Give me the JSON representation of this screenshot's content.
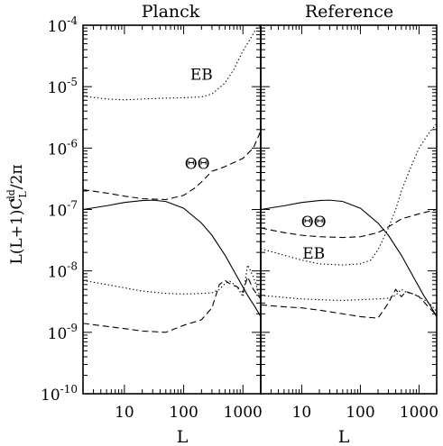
{
  "chart_data": [
    {
      "type": "line",
      "title": "Planck",
      "xlabel": "L",
      "ylabel": "L(L+1)C",
      "ylabel_sub": "L",
      "ylabel_sup": "dd",
      "ylabel_tail": "/2π",
      "xscale": "log",
      "yscale": "log",
      "xlim": [
        2,
        2000
      ],
      "ylim": [
        1e-10,
        0.0001
      ],
      "x_ticks": [
        10,
        100,
        1000
      ],
      "x_tick_labels": [
        "10",
        "100",
        "1000"
      ],
      "y_ticks": [
        1e-10,
        1e-09,
        1e-08,
        1e-07,
        1e-06,
        1e-05,
        0.0001
      ],
      "y_tick_labels": [
        {
          "base": "10",
          "exp": "-10"
        },
        {
          "base": "10",
          "exp": "-9"
        },
        {
          "base": "10",
          "exp": "-8"
        },
        {
          "base": "10",
          "exp": "-7"
        },
        {
          "base": "10",
          "exp": "-6"
        },
        {
          "base": "10",
          "exp": "-5"
        },
        {
          "base": "10",
          "exp": "-4"
        }
      ],
      "annotations": [
        {
          "text": "EB",
          "x": 200,
          "y": 1.3e-05
        },
        {
          "text": "ΘΘ",
          "x": 170,
          "y": 4.6e-07
        }
      ],
      "series": [
        {
          "style": "solid",
          "x": [
            2,
            5,
            10,
            20,
            30,
            50,
            100,
            200,
            300,
            500,
            800,
            1200,
            1600,
            2000
          ],
          "y": [
            1e-07,
            1.15e-07,
            1.3e-07,
            1.4e-07,
            1.42e-07,
            1.35e-07,
            1.05e-07,
            6e-08,
            3.8e-08,
            1.8e-08,
            8e-09,
            4e-09,
            2.6e-09,
            1.8e-09
          ]
        },
        {
          "style": "dotted",
          "x": [
            2,
            5,
            10,
            20,
            50,
            100,
            200,
            300,
            500,
            700,
            1000,
            1400,
            1700,
            2000
          ],
          "y": [
            7e-06,
            6.3e-06,
            6.1e-06,
            6.3e-06,
            6.5e-06,
            6.6e-06,
            6.8e-06,
            7.6e-06,
            1.15e-05,
            1.9e-05,
            3.8e-05,
            6.5e-05,
            9e-05,
            0.0001
          ]
        },
        {
          "style": "dashed",
          "x": [
            2,
            5,
            10,
            20,
            50,
            100,
            150,
            200,
            300,
            400,
            500,
            700,
            1000,
            1500,
            2000
          ],
          "y": [
            2.1e-07,
            1.85e-07,
            1.65e-07,
            1.5e-07,
            1.45e-07,
            1.7e-07,
            2.2e-07,
            2.8e-07,
            4.2e-07,
            4.6e-07,
            5e-07,
            5.8e-07,
            6.8e-07,
            1e-06,
            1.9e-06
          ]
        },
        {
          "style": "dotted",
          "x": [
            2,
            5,
            10,
            20,
            50,
            100,
            200,
            300,
            400,
            500,
            600,
            800,
            1000,
            1200,
            1500,
            2000
          ],
          "y": [
            7e-09,
            6e-09,
            5.3e-09,
            4.7e-09,
            4.3e-09,
            4.2e-09,
            4.3e-09,
            4.4e-09,
            5e-09,
            6.2e-09,
            6.8e-09,
            5.5e-09,
            3.8e-09,
            1.25e-08,
            8e-09,
            3.5e-09
          ]
        },
        {
          "style": "dashed",
          "x": [
            2,
            5,
            10,
            20,
            50,
            100,
            200,
            300,
            400,
            500,
            600,
            800,
            1000,
            1200,
            1500,
            2000
          ],
          "y": [
            1.4e-09,
            1.25e-09,
            1.15e-09,
            1.05e-09,
            1e-09,
            1.3e-09,
            1.6e-09,
            2.5e-09,
            6e-09,
            7e-09,
            6.2e-09,
            5.5e-09,
            4.5e-09,
            8e-09,
            5e-09,
            3.5e-09
          ]
        }
      ]
    },
    {
      "type": "line",
      "title": "Reference",
      "xlabel": "L",
      "xscale": "log",
      "yscale": "log",
      "xlim": [
        2,
        2000
      ],
      "ylim": [
        1e-10,
        0.0001
      ],
      "x_ticks": [
        10,
        100,
        1000
      ],
      "x_tick_labels": [
        "10",
        "100",
        "1000"
      ],
      "annotations": [
        {
          "text": "ΘΘ",
          "x": 16,
          "y": 5.2e-08
        },
        {
          "text": "EB",
          "x": 16,
          "y": 1.6e-08
        }
      ],
      "series": [
        {
          "style": "solid",
          "x": [
            2,
            5,
            10,
            20,
            30,
            50,
            100,
            200,
            300,
            500,
            800,
            1200,
            1600,
            2000
          ],
          "y": [
            1e-07,
            1.15e-07,
            1.3e-07,
            1.4e-07,
            1.42e-07,
            1.35e-07,
            1.05e-07,
            6e-08,
            3.8e-08,
            1.8e-08,
            8e-09,
            4e-09,
            2.6e-09,
            1.8e-09
          ]
        },
        {
          "style": "dashed",
          "x": [
            2,
            5,
            10,
            20,
            50,
            100,
            200,
            300,
            500,
            1000,
            2000
          ],
          "y": [
            5e-08,
            4.2e-08,
            3.8e-08,
            3.6e-08,
            3.5e-08,
            3.6e-08,
            4.2e-08,
            5.2e-08,
            7e-08,
            8.5e-08,
            1e-07
          ]
        },
        {
          "style": "dotted",
          "x": [
            2,
            5,
            10,
            20,
            50,
            100,
            150,
            200,
            300,
            400,
            500,
            700,
            1000,
            1500,
            2000
          ],
          "y": [
            2.3e-08,
            1.8e-08,
            1.5e-08,
            1.3e-08,
            1.25e-08,
            1.3e-08,
            1.5e-08,
            2.2e-08,
            5e-08,
            1e-07,
            2e-07,
            4.5e-07,
            1e-06,
            1.8e-06,
            2.5e-06
          ]
        },
        {
          "style": "dotted",
          "x": [
            2,
            5,
            10,
            20,
            50,
            100,
            200,
            300,
            400,
            500,
            600,
            800,
            1000,
            1500,
            2000
          ],
          "y": [
            4e-09,
            3.7e-09,
            3.5e-09,
            3.4e-09,
            3.3e-09,
            3.4e-09,
            3.5e-09,
            3.6e-09,
            4e-09,
            5e-09,
            4.5e-09,
            4.2e-09,
            3.8e-09,
            3e-09,
            2.2e-09
          ]
        },
        {
          "style": "dashed",
          "x": [
            2,
            5,
            10,
            20,
            50,
            100,
            200,
            300,
            400,
            500,
            600,
            800,
            1000,
            1500,
            2000
          ],
          "y": [
            2.8e-09,
            2.6e-09,
            2.5e-09,
            2.3e-09,
            2e-09,
            1.8e-09,
            1.7e-09,
            3e-09,
            5e-09,
            3.8e-09,
            4.6e-09,
            4.2e-09,
            3.8e-09,
            2.5e-09,
            1.9e-09
          ]
        }
      ]
    }
  ]
}
